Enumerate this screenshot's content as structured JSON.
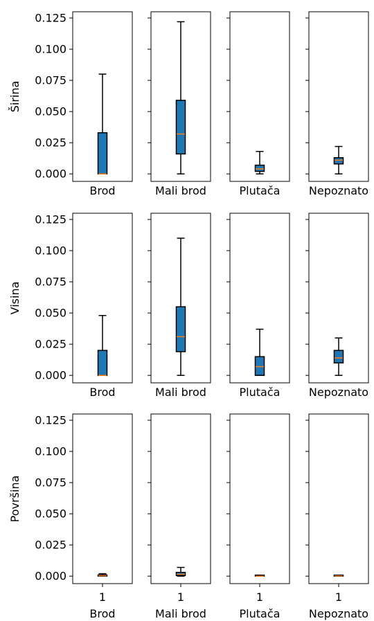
{
  "chart_data": {
    "type": "box",
    "ylim": [
      -0.006,
      0.13
    ],
    "yticks": [
      "0.000",
      "0.025",
      "0.050",
      "0.075",
      "0.100",
      "0.125"
    ],
    "ytick_values": [
      0,
      0.025,
      0.05,
      0.075,
      0.1,
      0.125
    ],
    "box_color": "#1f77b4",
    "median_color": "#ff7f0e",
    "rows": [
      {
        "ylabel": "Širina",
        "panels": [
          {
            "category": "Brod",
            "whislo": 0.0,
            "q1": 0.0,
            "med": 0.0,
            "q3": 0.033,
            "whishi": 0.08
          },
          {
            "category": "Mali brod",
            "whislo": 0.0,
            "q1": 0.016,
            "med": 0.032,
            "q3": 0.059,
            "whishi": 0.122
          },
          {
            "category": "Plutača",
            "whislo": 0.0,
            "q1": 0.002,
            "med": 0.004,
            "q3": 0.007,
            "whishi": 0.018
          },
          {
            "category": "Nepoznato",
            "whislo": 0.0,
            "q1": 0.008,
            "med": 0.011,
            "q3": 0.013,
            "whishi": 0.022
          }
        ]
      },
      {
        "ylabel": "Visina",
        "panels": [
          {
            "category": "Brod",
            "whislo": 0.0,
            "q1": 0.0,
            "med": 0.0,
            "q3": 0.02,
            "whishi": 0.048
          },
          {
            "category": "Mali brod",
            "whislo": 0.0,
            "q1": 0.019,
            "med": 0.031,
            "q3": 0.055,
            "whishi": 0.11
          },
          {
            "category": "Plutača",
            "whislo": 0.0,
            "q1": 0.0,
            "med": 0.007,
            "q3": 0.015,
            "whishi": 0.037
          },
          {
            "category": "Nepoznato",
            "whislo": 0.0,
            "q1": 0.01,
            "med": 0.014,
            "q3": 0.02,
            "whishi": 0.03
          }
        ]
      },
      {
        "ylabel": "Površina",
        "xtick_label": "1",
        "panels": [
          {
            "category": "Brod",
            "whislo": 0.0,
            "q1": 0.0,
            "med": 0.0003,
            "q3": 0.001,
            "whishi": 0.002
          },
          {
            "category": "Mali brod",
            "whislo": 0.0,
            "q1": 0.0005,
            "med": 0.0015,
            "q3": 0.003,
            "whishi": 0.007
          },
          {
            "category": "Plutača",
            "whislo": 0.0,
            "q1": 0.0,
            "med": 0.0,
            "q3": 0.0,
            "whishi": 0.0002
          },
          {
            "category": "Nepoznato",
            "whislo": 0.0,
            "q1": 0.0,
            "med": 0.0002,
            "q3": 0.0004,
            "whishi": 0.0008
          }
        ]
      }
    ]
  }
}
